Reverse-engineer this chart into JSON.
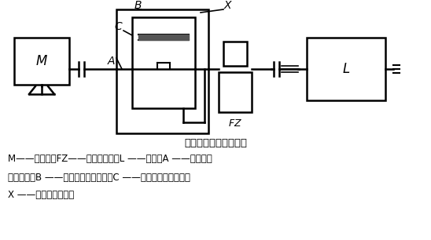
{
  "title": "可控缓冲启动系统组成",
  "caption_line1": "M——电动机，FZ——磁粉制动器，L ——负载，A ——差动轮系",
  "caption_line2": "的中心轮，B ——差动轮系的内齿圈，C ——差动轮系的行星轮，",
  "caption_line3": "X ——差动轮系的系杆",
  "bg_color": "#ffffff",
  "line_color": "#000000",
  "lw": 1.8
}
